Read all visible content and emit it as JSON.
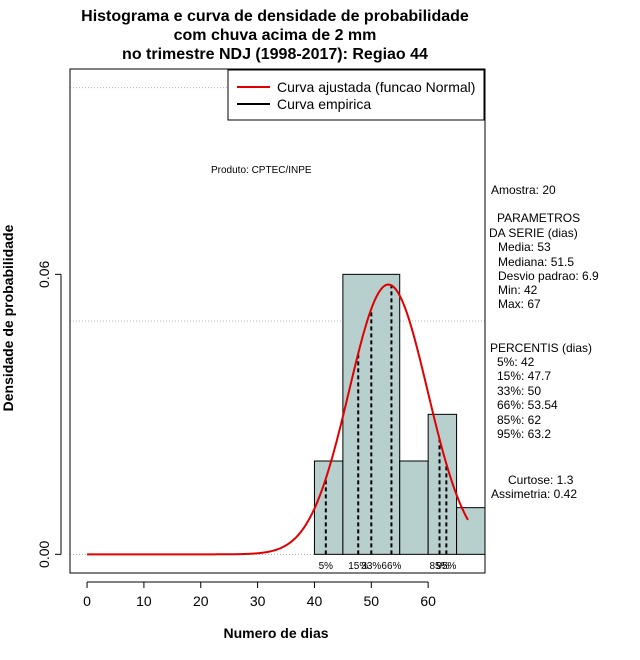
{
  "chart_data": {
    "type": "histogram",
    "title_lines": [
      "Histograma e curva de densidade de probabilidade",
      "com chuva acima de 2 mm",
      "no trimestre NDJ (1998-2017): Regiao 44"
    ],
    "xlabel": "Numero de dias",
    "ylabel": "Densidade de probabilidade",
    "xlim": [
      -3,
      70
    ],
    "ylim": [
      -0.004,
      0.104
    ],
    "x_ticks": [
      0,
      10,
      20,
      30,
      40,
      50,
      60
    ],
    "y_ticks": [
      0.0,
      0.06
    ],
    "y_tick_labels": [
      "0.00",
      "0.06"
    ],
    "grid": true,
    "bins": [
      {
        "from": 40,
        "to": 45,
        "density": 0.02
      },
      {
        "from": 45,
        "to": 55,
        "density": 0.06
      },
      {
        "from": 55,
        "to": 60,
        "density": 0.02
      },
      {
        "from": 60,
        "to": 65,
        "density": 0.03
      },
      {
        "from": 65,
        "to": 70,
        "density": 0.01
      }
    ],
    "bar_color": "#b7cfcd",
    "fit_curve": {
      "name": "Curva ajustada (funcao Normal)",
      "mean": 53,
      "sd": 6.9,
      "x_from": 0,
      "x_to": 67,
      "color": "#e00000"
    },
    "empirical_legend": "Curva empirica",
    "percentile_lines": [
      {
        "label": "5%",
        "x": 42
      },
      {
        "label": "15%",
        "x": 47.7
      },
      {
        "label": "33%",
        "x": 50
      },
      {
        "label": "66%",
        "x": 53.54
      },
      {
        "label": "85%",
        "x": 62
      },
      {
        "label": "95%",
        "x": 63.2
      }
    ],
    "product_label": "Produto: CPTEC/INPE",
    "stats": {
      "sample": "Amostra: 20",
      "params_header_1": "PARAMETROS",
      "params_header_2": "DA SERIE (dias)",
      "media": "Media: 53",
      "mediana": "Mediana: 51.5",
      "desvio": "Desvio padrao: 6.9",
      "min": "Min: 42",
      "max": "Max: 67",
      "percentis_header": "PERCENTIS (dias)",
      "p5": "5%: 42",
      "p15": "15%: 47.7",
      "p33": "33%: 50",
      "p66": "66%: 53.54",
      "p85": "85%: 62",
      "p95": "95%: 63.2",
      "curtose": "Curtose: 1.3",
      "assimetria": "Assimetria: 0.42"
    }
  }
}
